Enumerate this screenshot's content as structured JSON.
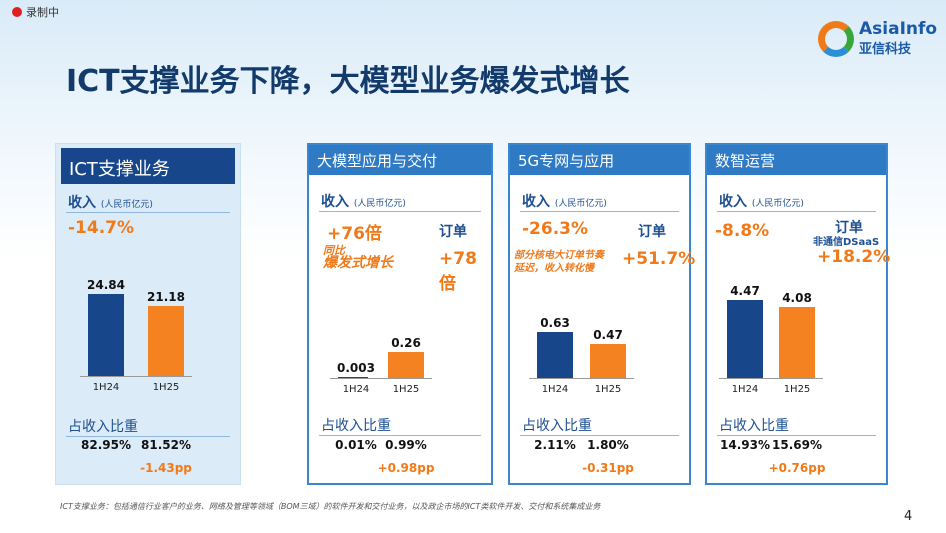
{
  "recording": "录制中",
  "title": "ICT支撑业务下降，大模型业务爆发式增长",
  "logo": {
    "en": "AsiaInfo",
    "cn": "亚信科技"
  },
  "revenue_label": "收入",
  "revenue_unit": "(人民币亿元)",
  "share_label": "占收入比重",
  "order_label": "订单",
  "categories": [
    "1H24",
    "1H25"
  ],
  "colors": {
    "1H24": "#17468a",
    "1H25": "#f58220",
    "accent": "#f07a1a"
  },
  "panels": [
    {
      "name": "ICT支撑业务",
      "revenue_change": "-14.7%",
      "values": [
        24.84,
        21.18
      ],
      "value_labels": [
        "24.84",
        "21.18"
      ],
      "shares": [
        "82.95%",
        "81.52%"
      ],
      "share_change": "-1.43pp"
    },
    {
      "name": "大模型应用与交付",
      "revenue_change": "+76倍",
      "note": "同比",
      "note2": "爆发式增长",
      "order_change": "+78倍",
      "values": [
        0.003,
        0.26
      ],
      "value_labels": [
        "0.003",
        "0.26"
      ],
      "shares": [
        "0.01%",
        "0.99%"
      ],
      "share_change": "+0.98pp"
    },
    {
      "name": "5G专网与应用",
      "revenue_change": "-26.3%",
      "note": "部分核电大订单节奏",
      "note2": "延迟，收入转化慢",
      "order_change": "+51.7%",
      "values": [
        0.63,
        0.47
      ],
      "value_labels": [
        "0.63",
        "0.47"
      ],
      "shares": [
        "2.11%",
        "1.80%"
      ],
      "share_change": "-0.31pp"
    },
    {
      "name": "数智运营",
      "revenue_change": "-8.8%",
      "order_sub": "非通信DSaaS",
      "order_change": "+18.2%",
      "values": [
        4.47,
        4.08
      ],
      "value_labels": [
        "4.47",
        "4.08"
      ],
      "shares": [
        "14.93%",
        "15.69%"
      ],
      "share_change": "+0.76pp"
    }
  ],
  "footnote": "ICT支撑业务：包括通信行业客户的业务、网络及管理等领域（BOM三域）的软件开发和交付业务，以及政企市场的ICT类软件开发、交付和系统集成业务",
  "page_number": "4"
}
